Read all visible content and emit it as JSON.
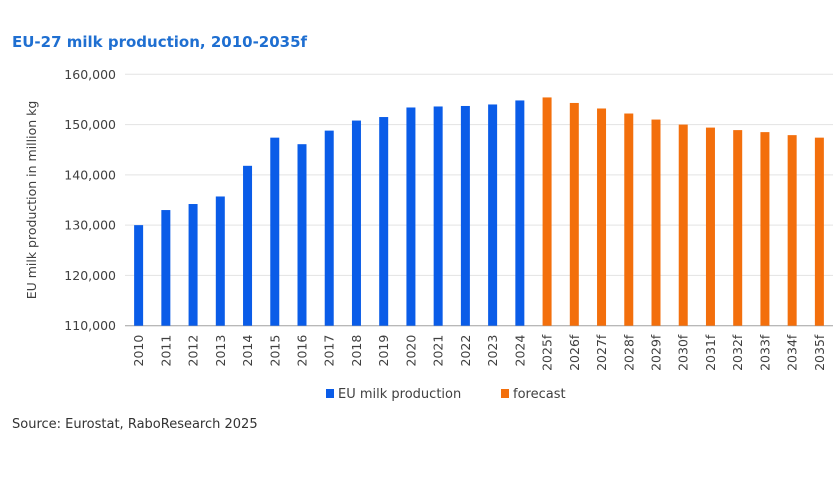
{
  "chart_data": {
    "type": "bar",
    "title": "EU-27 milk production, 2010-2035f",
    "ylabel": "EU milk production in million kg",
    "xlabel": "",
    "ylim": [
      110000,
      160000
    ],
    "yticks": [
      "110,000",
      "120,000",
      "130,000",
      "140,000",
      "150,000",
      "160,000"
    ],
    "ytick_values": [
      110000,
      120000,
      130000,
      140000,
      150000,
      160000
    ],
    "grid": true,
    "legend_position": "bottom",
    "categories": [
      "2010",
      "2011",
      "2012",
      "2013",
      "2014",
      "2015",
      "2016",
      "2017",
      "2018",
      "2019",
      "2020",
      "2021",
      "2022",
      "2023",
      "2024",
      "2025f",
      "2026f",
      "2027f",
      "2028f",
      "2029f",
      "2030f",
      "2031f",
      "2032f",
      "2033f",
      "2034f",
      "2035f"
    ],
    "series": [
      {
        "name": "EU milk production",
        "color": "#0a5ce8",
        "values": [
          130000,
          133000,
          134200,
          135700,
          141800,
          147400,
          146100,
          148800,
          150800,
          151500,
          153400,
          153600,
          153700,
          154000,
          154800,
          null,
          null,
          null,
          null,
          null,
          null,
          null,
          null,
          null,
          null,
          null
        ]
      },
      {
        "name": "forecast",
        "color": "#f36f0c",
        "values": [
          null,
          null,
          null,
          null,
          null,
          null,
          null,
          null,
          null,
          null,
          null,
          null,
          null,
          null,
          null,
          155400,
          154300,
          153200,
          152200,
          151000,
          150000,
          149400,
          148900,
          148500,
          147900,
          147400
        ]
      }
    ],
    "source": "Source: Eurostat, RaboResearch 2025"
  }
}
